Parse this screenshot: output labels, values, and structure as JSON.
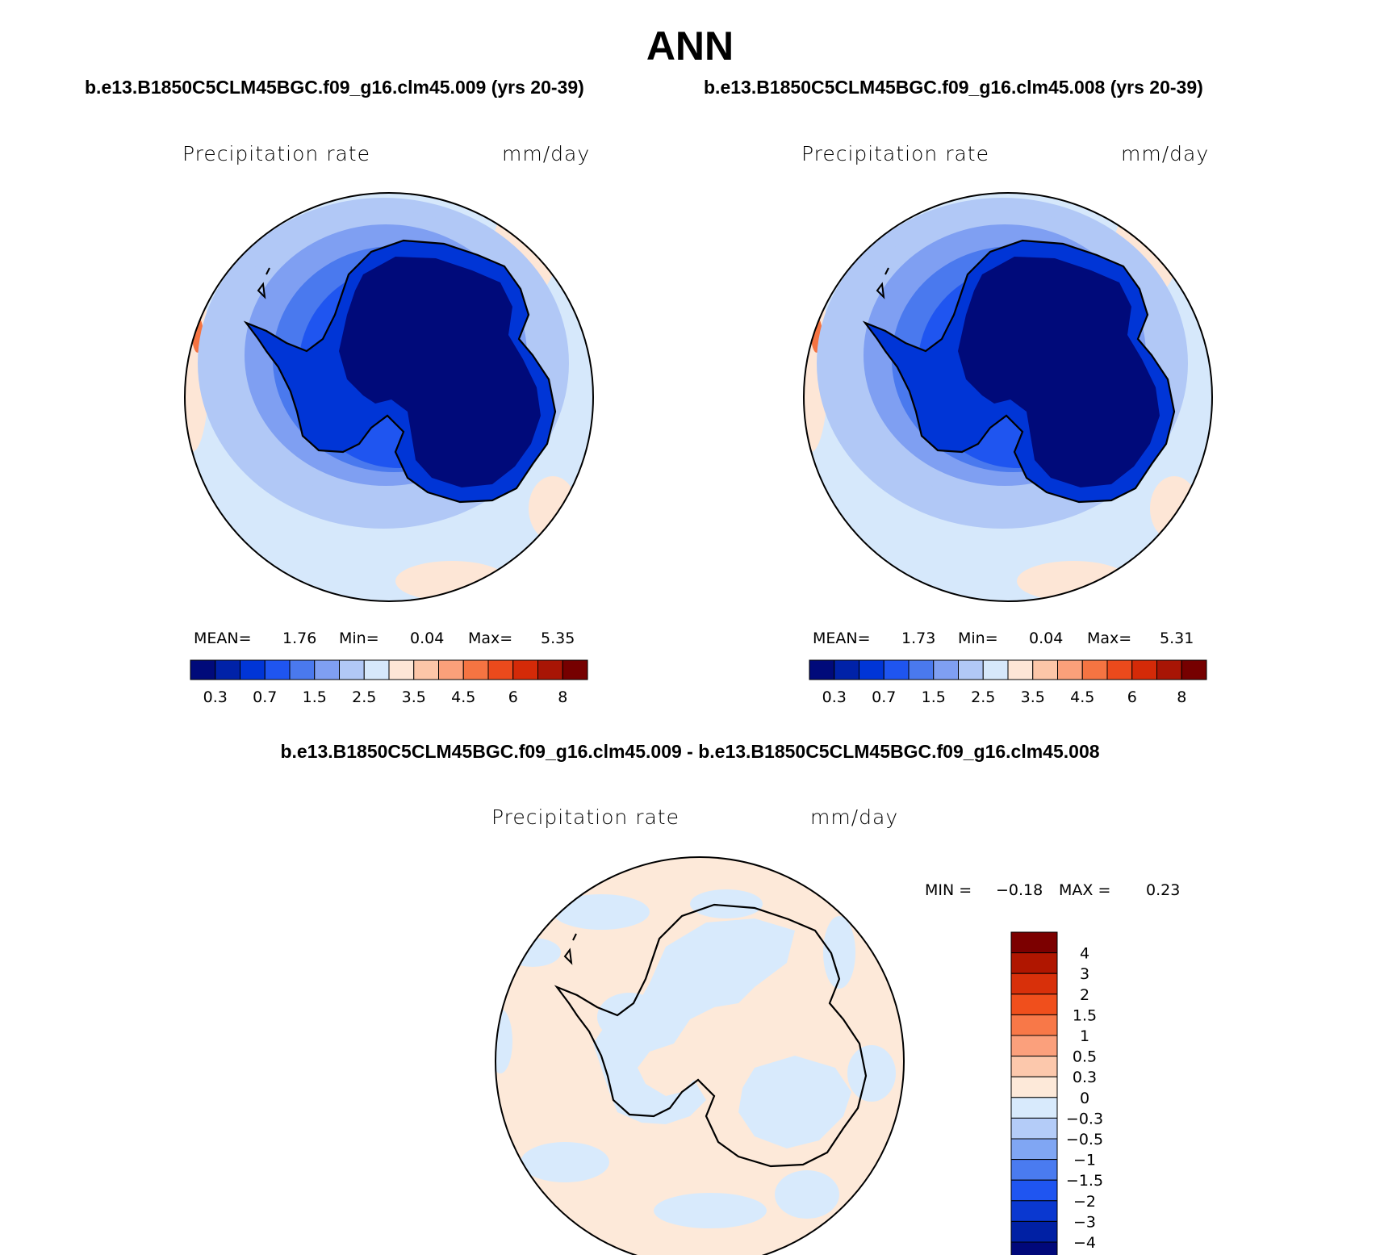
{
  "season": "ANN",
  "cases": {
    "left": "b.e13.B1850C5CLM45BGC.f09_g16.clm45.009 (yrs 20-39)",
    "right": "b.e13.B1850C5CLM45BGC.f09_g16.clm45.008 (yrs 20-39)",
    "difference": "b.e13.B1850C5CLM45BGC.f09_g16.clm45.009 - b.e13.B1850C5CLM45BGC.f09_g16.clm45.008"
  },
  "panels": [
    {
      "variable": "Precipitation rate",
      "units": "mm/day",
      "stats": {
        "mean_label": "MEAN=",
        "mean": "1.76",
        "min_label": "Min=",
        "min": "0.04",
        "max_label": "Max=",
        "max": "5.35"
      }
    },
    {
      "variable": "Precipitation rate",
      "units": "mm/day",
      "stats": {
        "mean_label": "MEAN=",
        "mean": "1.73",
        "min_label": "Min=",
        "min": "0.04",
        "max_label": "Max=",
        "max": "5.31"
      }
    }
  ],
  "difference_panel": {
    "variable": "Precipitation rate",
    "units": "mm/day",
    "stats": {
      "min_label": "MIN =",
      "min": "−0.18",
      "max_label": "MAX =",
      "max": "0.23"
    }
  },
  "absolute_colorbar": {
    "colors": [
      "#000a7a",
      "#0022a8",
      "#0035d6",
      "#1f55f0",
      "#4a79ee",
      "#7f9ff2",
      "#b1c8f6",
      "#d6e8fb",
      "#fde6d6",
      "#fcc6a8",
      "#fba07a",
      "#f57442",
      "#ec4a1c",
      "#d42a08",
      "#a81505",
      "#760000"
    ],
    "labels": [
      "0.3",
      "0.7",
      "1.5",
      "2.5",
      "3.5",
      "4.5",
      "6",
      "8"
    ]
  },
  "difference_colorbar": {
    "colors_top_to_bottom": [
      "#7c0000",
      "#b01600",
      "#d8300a",
      "#f04f1c",
      "#f87848",
      "#fba07c",
      "#fcc8ac",
      "#fde9d9",
      "#d8eafc",
      "#b4ccf8",
      "#80a6f3",
      "#4a7bf0",
      "#1f55f1",
      "#0a38d0",
      "#0020a4",
      "#00087a"
    ],
    "labels_top_to_bottom": [
      "4",
      "3",
      "2",
      "1.5",
      "1",
      "0.5",
      "0.3",
      "0",
      "−0.3",
      "−0.5",
      "−1",
      "−1.5",
      "−2",
      "−3",
      "−4"
    ]
  }
}
